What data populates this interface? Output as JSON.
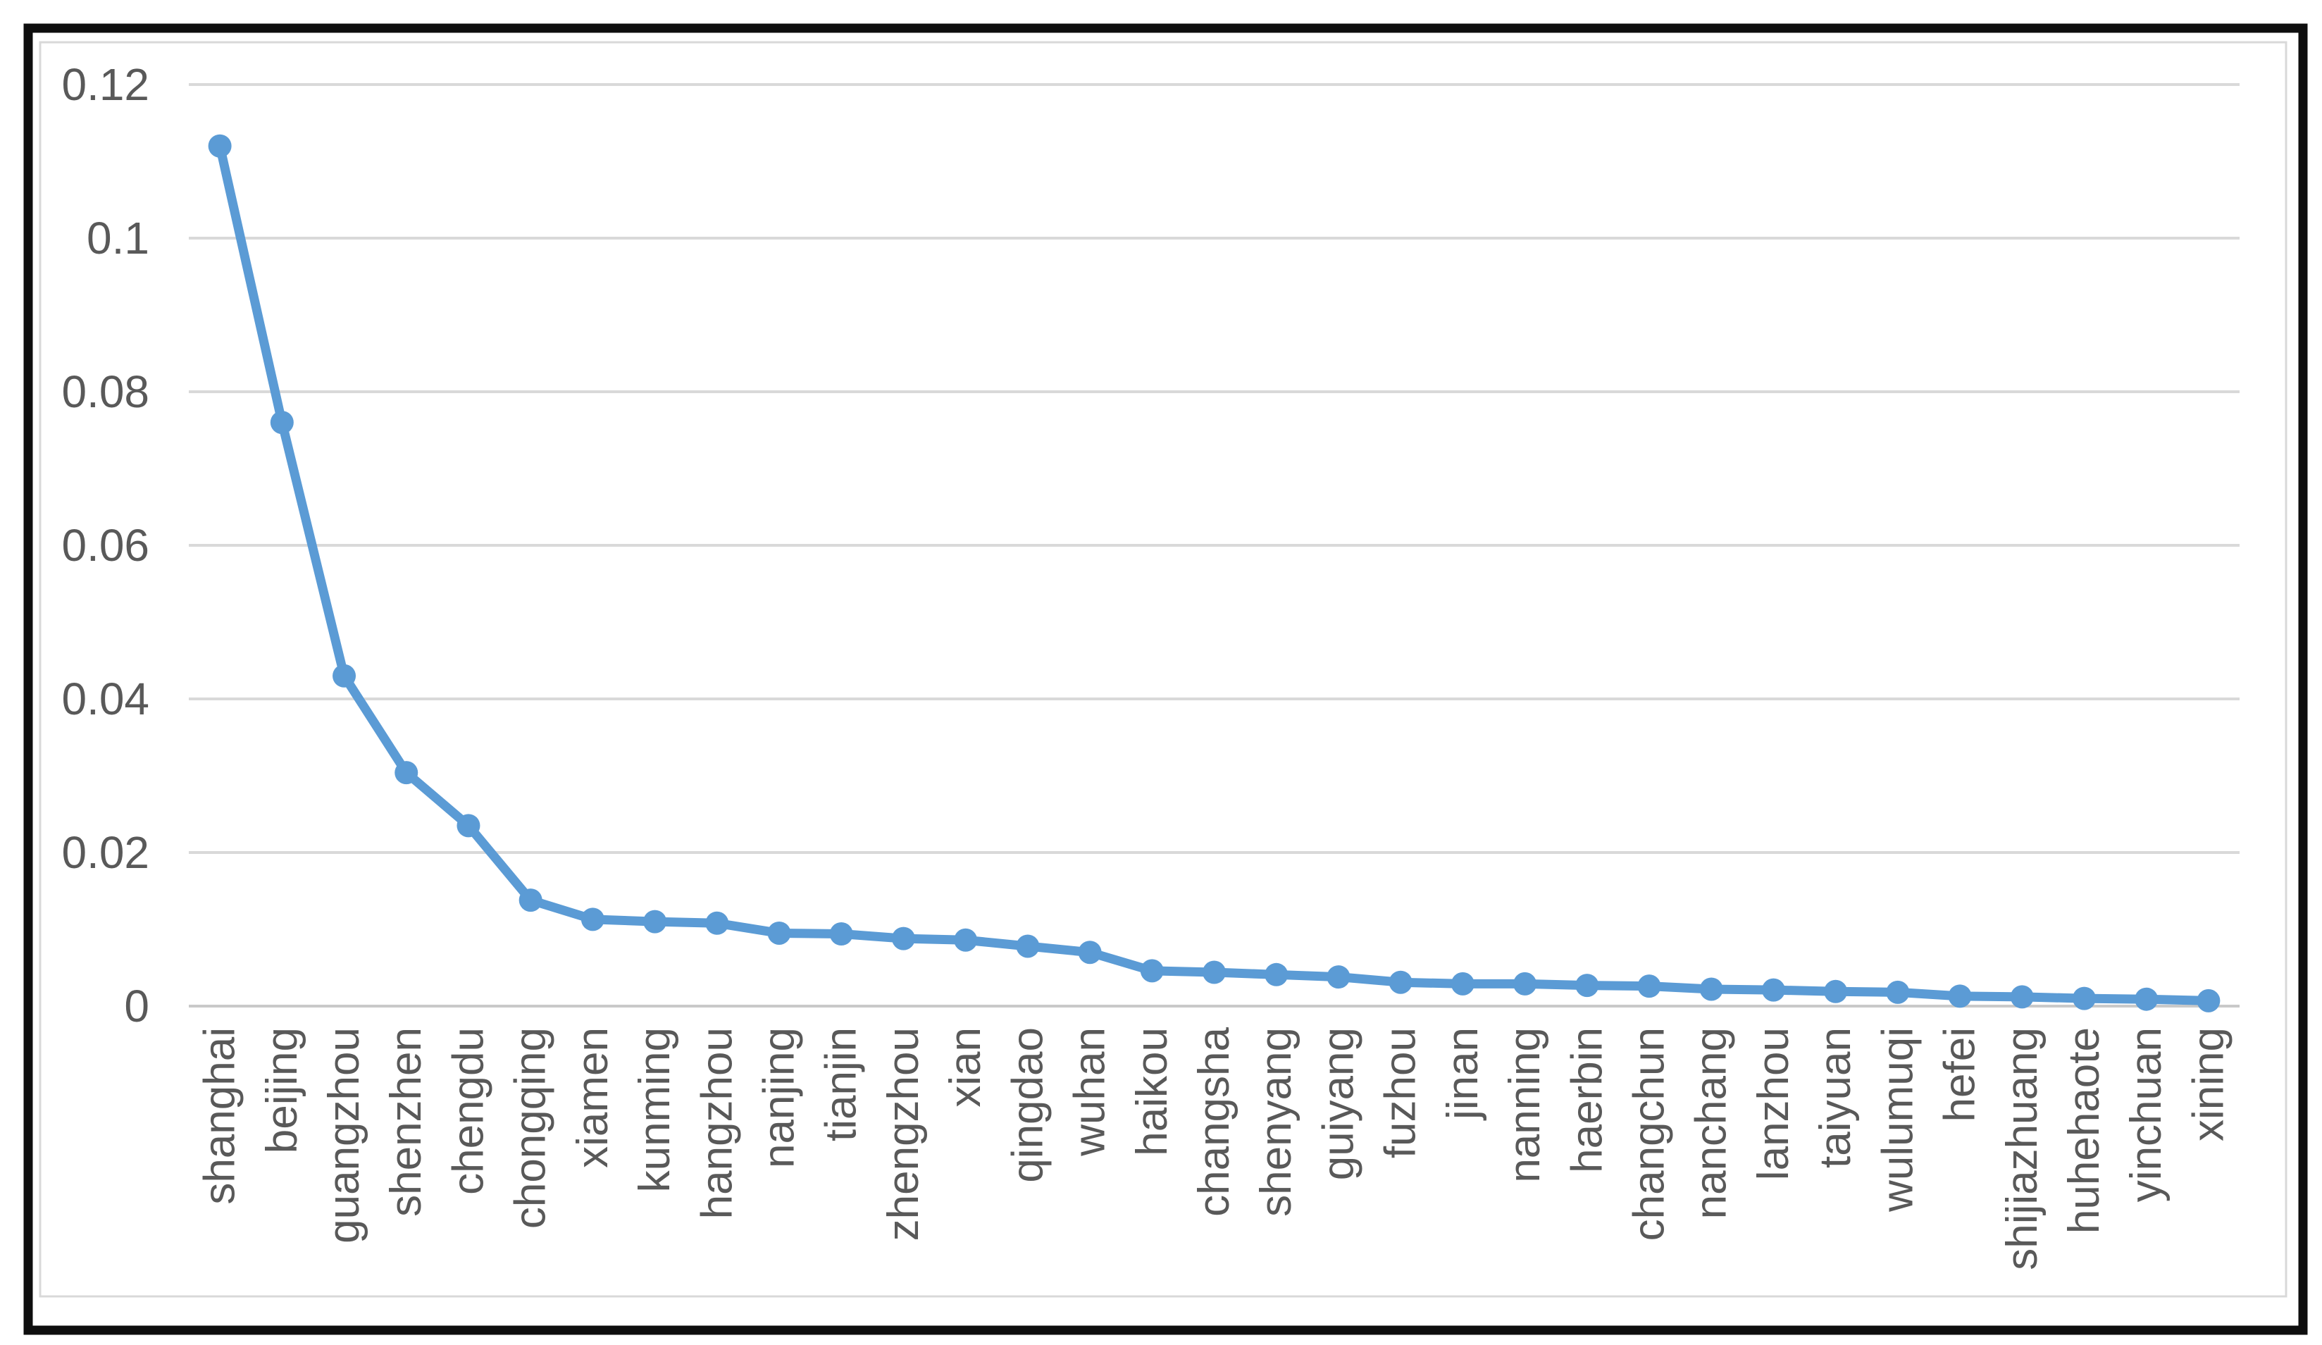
{
  "figure": {
    "background_color": "#FFFFFF",
    "outer_border_color": "#0E0E0E",
    "chart_area_border_color": "#D9D9D9"
  },
  "chart_data": {
    "type": "line",
    "title": "",
    "categories": [
      "shanghai",
      "beijing",
      "guangzhou",
      "shenzhen",
      "chengdu",
      "chongqing",
      "xiamen",
      "kunming",
      "hangzhou",
      "nanjing",
      "tianjin",
      "zhengzhou",
      "xian",
      "qingdao",
      "wuhan",
      "haikou",
      "changsha",
      "shenyang",
      "guiyang",
      "fuzhou",
      "jinan",
      "nanning",
      "haerbin",
      "changchun",
      "nanchang",
      "lanzhou",
      "taiyuan",
      "wulumuqi",
      "hefei",
      "shijiazhuang",
      "huhehaote",
      "yinchuan",
      "xining"
    ],
    "values": [
      0.112,
      0.076,
      0.043,
      0.0304,
      0.0235,
      0.0138,
      0.0113,
      0.011,
      0.0108,
      0.0095,
      0.0094,
      0.0088,
      0.0086,
      0.0078,
      0.007,
      0.0046,
      0.0044,
      0.0041,
      0.0038,
      0.0031,
      0.0029,
      0.0029,
      0.0027,
      0.0026,
      0.0022,
      0.0021,
      0.0019,
      0.0018,
      0.0013,
      0.0012,
      0.001,
      0.0009,
      0.0007
    ],
    "xlabel": "",
    "ylabel": "",
    "ylim": [
      0,
      0.12
    ],
    "ytick_labels": [
      "0",
      "0.02",
      "0.04",
      "0.06",
      "0.08",
      "0.1",
      "0.12"
    ],
    "ytick_values": [
      0,
      0.02,
      0.04,
      0.06,
      0.08,
      0.1,
      0.12
    ],
    "grid": true,
    "legend_position": "none",
    "line_color": "#5B9BD5",
    "marker": "circle",
    "gridline_color": "#D9D9D9",
    "axis_line_color": "#C9C9C9",
    "tick_label_color": "#595959"
  }
}
